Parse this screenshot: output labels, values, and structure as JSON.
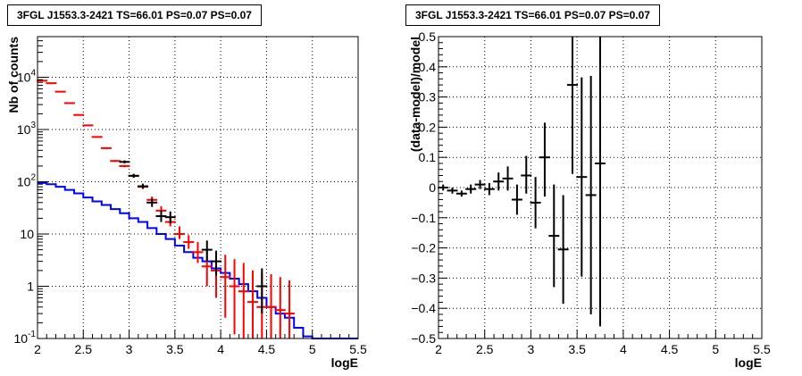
{
  "chart_data": [
    {
      "type": "step-histogram",
      "title": "3FGL J1553.3-2421 TS=66.01 PS=0.07 PS=0.07",
      "xlabel": "logE",
      "ylabel": "Nb of counts",
      "xlim": [
        2,
        5.5
      ],
      "ylim": [
        0.1,
        60000
      ],
      "yscale": "log",
      "grid": true,
      "xticks": [
        "2",
        "2.5",
        "3",
        "3.5",
        "4",
        "4.5",
        "5",
        "5.5"
      ],
      "yticks": [
        "10^-1",
        "1",
        "10",
        "10^2",
        "10^3",
        "10^4"
      ],
      "bin_edges": [
        2.0,
        2.1,
        2.2,
        2.3,
        2.4,
        2.5,
        2.6,
        2.7,
        2.8,
        2.9,
        3.0,
        3.1,
        3.2,
        3.3,
        3.4,
        3.5,
        3.6,
        3.7,
        3.8,
        3.9,
        4.0,
        4.1,
        4.2,
        4.3,
        4.4,
        4.5,
        4.6,
        4.7,
        4.8,
        4.9,
        5.0,
        5.1,
        5.2,
        5.3,
        5.4,
        5.5
      ],
      "series": [
        {
          "color": "#ff0000",
          "style": "errorbar-markers",
          "x": [
            2.05,
            2.15,
            2.25,
            2.35,
            2.45,
            2.55,
            2.65,
            2.75,
            2.85,
            2.95,
            3.05,
            3.15,
            3.25,
            3.35,
            3.45,
            3.55,
            3.65,
            3.75,
            3.85,
            3.95,
            4.05,
            4.15,
            4.25,
            4.35,
            4.45,
            4.55,
            4.65,
            4.75
          ],
          "y": [
            8600,
            7700,
            5300,
            3200,
            1900,
            1200,
            720,
            440,
            250,
            200,
            130,
            80,
            45,
            28,
            17,
            10,
            7,
            4.5,
            2.4,
            2.0,
            1.5,
            1.0,
            0.8,
            0.5,
            0.4,
            0.4,
            0.35,
            0.3
          ],
          "ylow": [
            8450,
            7570,
            5190,
            3130,
            1850,
            1160,
            700,
            425,
            240,
            190,
            122,
            73,
            40,
            24,
            14,
            8,
            5.2,
            2.8,
            1.0,
            0.6,
            0.25,
            0.12,
            0.1,
            0.1,
            0.1,
            0.1,
            0.1,
            0.1
          ],
          "yhigh": [
            8750,
            7830,
            5410,
            3270,
            1950,
            1240,
            740,
            455,
            260,
            210,
            138,
            88,
            52,
            34,
            22,
            14,
            9.5,
            7.0,
            5.0,
            4.5,
            4.0,
            3.3,
            2.8,
            2.0,
            1.8,
            1.7,
            1.5,
            1.3
          ]
        },
        {
          "color": "#000000",
          "style": "errorbar-markers",
          "x": [
            2.95,
            3.05,
            3.15,
            3.25,
            3.35,
            3.45,
            3.85,
            3.95,
            4.45
          ],
          "y": [
            240,
            130,
            82,
            40,
            22,
            21,
            5,
            3,
            1
          ],
          "ylow": [
            225,
            119,
            73,
            33,
            17,
            16,
            3,
            1.6,
            0.3
          ],
          "yhigh": [
            256,
            142,
            92,
            48,
            28,
            27,
            7.5,
            4.8,
            2.2
          ]
        },
        {
          "color": "#0000ff",
          "style": "step",
          "values": [
            95,
            90,
            80,
            70,
            60,
            50,
            42,
            36,
            30,
            25,
            20,
            17,
            13,
            10,
            8,
            6,
            4.5,
            3.5,
            3.0,
            2.2,
            1.8,
            1.4,
            1.1,
            0.8,
            0.6,
            0.4,
            0.3,
            0.25,
            0.16,
            0.11,
            0.1,
            0.1,
            0.1,
            0.1,
            0.1
          ]
        }
      ]
    },
    {
      "type": "errorbar",
      "title": "3FGL J1553.3-2421 TS=66.01 PS=0.07 PS=0.07",
      "xlabel": "logE",
      "ylabel": "(data-model)/model",
      "xlim": [
        2,
        5.5
      ],
      "ylim": [
        -0.5,
        0.5
      ],
      "grid": true,
      "xticks": [
        "2",
        "2.5",
        "3",
        "3.5",
        "4",
        "4.5",
        "5",
        "5.5"
      ],
      "yticks": [
        "−0.5",
        "−0.4",
        "−0.3",
        "−0.2",
        "−0.1",
        "0",
        "0.1",
        "0.2",
        "0.3",
        "0.4",
        "0.5"
      ],
      "series": [
        {
          "color": "#000000",
          "x": [
            2.05,
            2.15,
            2.25,
            2.35,
            2.45,
            2.55,
            2.65,
            2.75,
            2.85,
            2.95,
            3.05,
            3.15,
            3.25,
            3.35,
            3.45,
            3.55,
            3.65,
            3.75
          ],
          "y": [
            0.0,
            -0.01,
            -0.02,
            -0.005,
            0.01,
            -0.005,
            0.02,
            0.03,
            -0.04,
            0.04,
            -0.05,
            0.1,
            -0.16,
            -0.205,
            0.34,
            0.035,
            -0.025,
            0.08
          ],
          "ylow": [
            -0.01,
            -0.02,
            -0.03,
            -0.02,
            -0.005,
            -0.025,
            -0.01,
            -0.01,
            -0.09,
            -0.02,
            -0.135,
            -0.03,
            -0.33,
            -0.385,
            0.045,
            -0.295,
            -0.42,
            -0.46
          ],
          "yhigh": [
            0.01,
            0.0,
            -0.01,
            0.01,
            0.025,
            0.015,
            0.05,
            0.07,
            0.01,
            0.105,
            0.035,
            0.215,
            0.01,
            -0.025,
            0.5,
            0.365,
            0.37,
            0.5
          ]
        }
      ]
    }
  ]
}
